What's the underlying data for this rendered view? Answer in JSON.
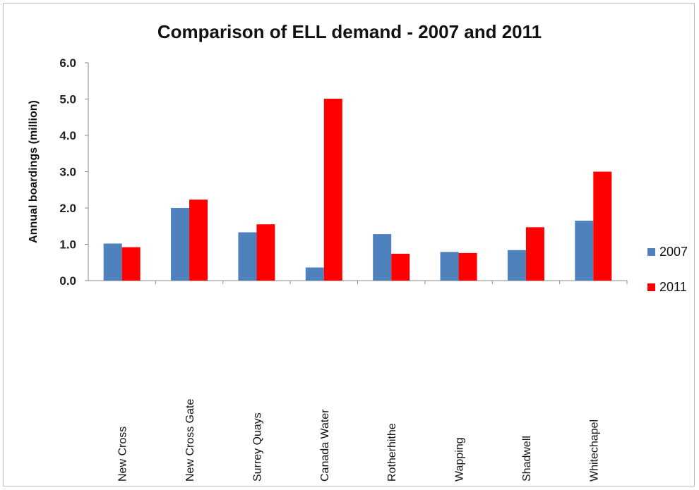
{
  "chart_data": {
    "type": "bar",
    "title": "Comparison of ELL demand - 2007 and 2011",
    "xlabel": "",
    "ylabel": "Annual boardings (million)",
    "ylim": [
      0,
      6
    ],
    "yticks": [
      "0.0",
      "1.0",
      "2.0",
      "3.0",
      "4.0",
      "5.0",
      "6.0"
    ],
    "categories": [
      "New Cross",
      "New Cross Gate",
      "Surrey Quays",
      "Canada Water",
      "Rotherhithe",
      "Wapping",
      "Shadwell",
      "Whitechapel"
    ],
    "series": [
      {
        "name": "2007",
        "color": "#4f81bd",
        "values": [
          1.02,
          2.0,
          1.33,
          0.36,
          1.28,
          0.79,
          0.84,
          1.65
        ]
      },
      {
        "name": "2011",
        "color": "#ff0000",
        "values": [
          0.92,
          2.23,
          1.55,
          5.01,
          0.74,
          0.76,
          1.47,
          3.0
        ]
      }
    ],
    "grid": false,
    "legend_position": "right"
  }
}
